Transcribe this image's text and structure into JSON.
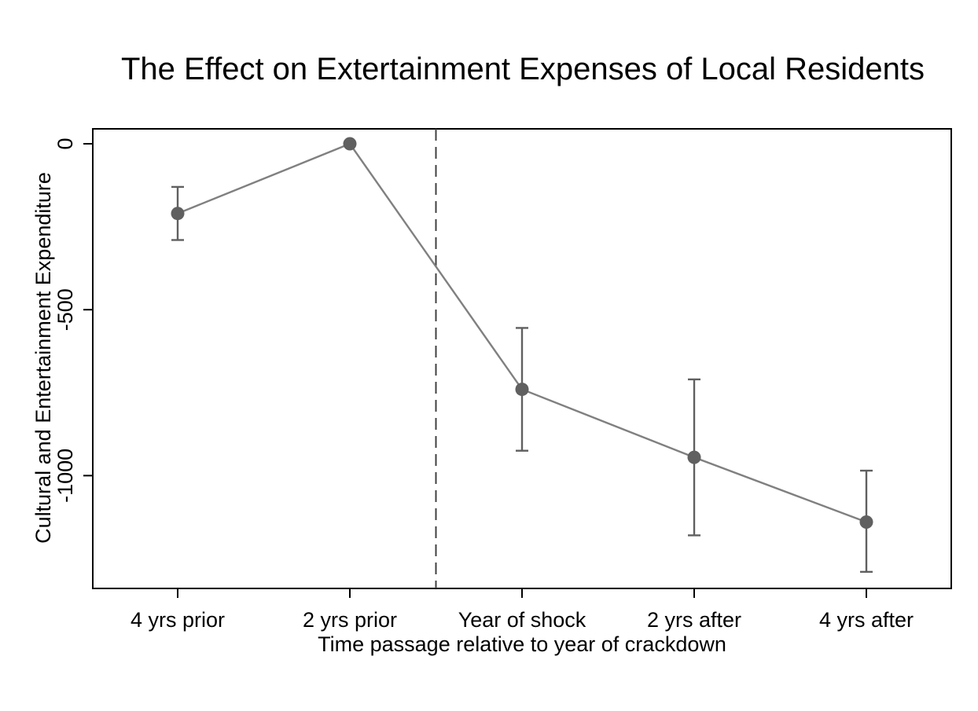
{
  "chart_data": {
    "type": "line",
    "title": "The Effect on Extertainment Expenses of Local Residents",
    "xlabel": "Time passage relative to year of crackdown",
    "ylabel": "Cultural and Entertainment Expenditure",
    "categories": [
      "4 yrs prior",
      "2 yrs prior",
      "Year of shock",
      "2 yrs after",
      "4 yrs after"
    ],
    "series": [
      {
        "values": [
          -210,
          0,
          -740,
          -945,
          -1140
        ],
        "ci_low": [
          -290,
          0,
          -925,
          -1180,
          -1290
        ],
        "ci_high": [
          -130,
          0,
          -555,
          -710,
          -985
        ]
      }
    ],
    "y_ticks": [
      0,
      -500,
      -1000
    ],
    "y_tick_labels": [
      "0",
      "-500",
      "-1000"
    ],
    "ylim": [
      -1340,
      45
    ],
    "vertical_reference_line_between": [
      "2 yrs prior",
      "Year of shock"
    ],
    "grid": false,
    "legend": "none",
    "colors": {
      "line": "#808080",
      "marker": "#606060",
      "errorbar": "#606060",
      "refline": "#404040",
      "axis": "#000000"
    }
  }
}
